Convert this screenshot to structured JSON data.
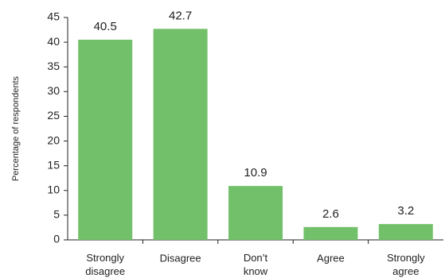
{
  "chart_data": {
    "type": "bar",
    "y_label": "Percentage of respondents",
    "categories": [
      "Strongly disagree",
      "Disagree",
      "Don’t know",
      "Agree",
      "Strongly agree"
    ],
    "values": [
      40.5,
      42.7,
      10.9,
      2.6,
      3.2
    ],
    "color": "#72c06a",
    "ylim": [
      0,
      45
    ],
    "yticks": [
      0,
      5,
      10,
      15,
      20,
      25,
      30,
      35,
      40,
      45
    ],
    "grid": false
  }
}
